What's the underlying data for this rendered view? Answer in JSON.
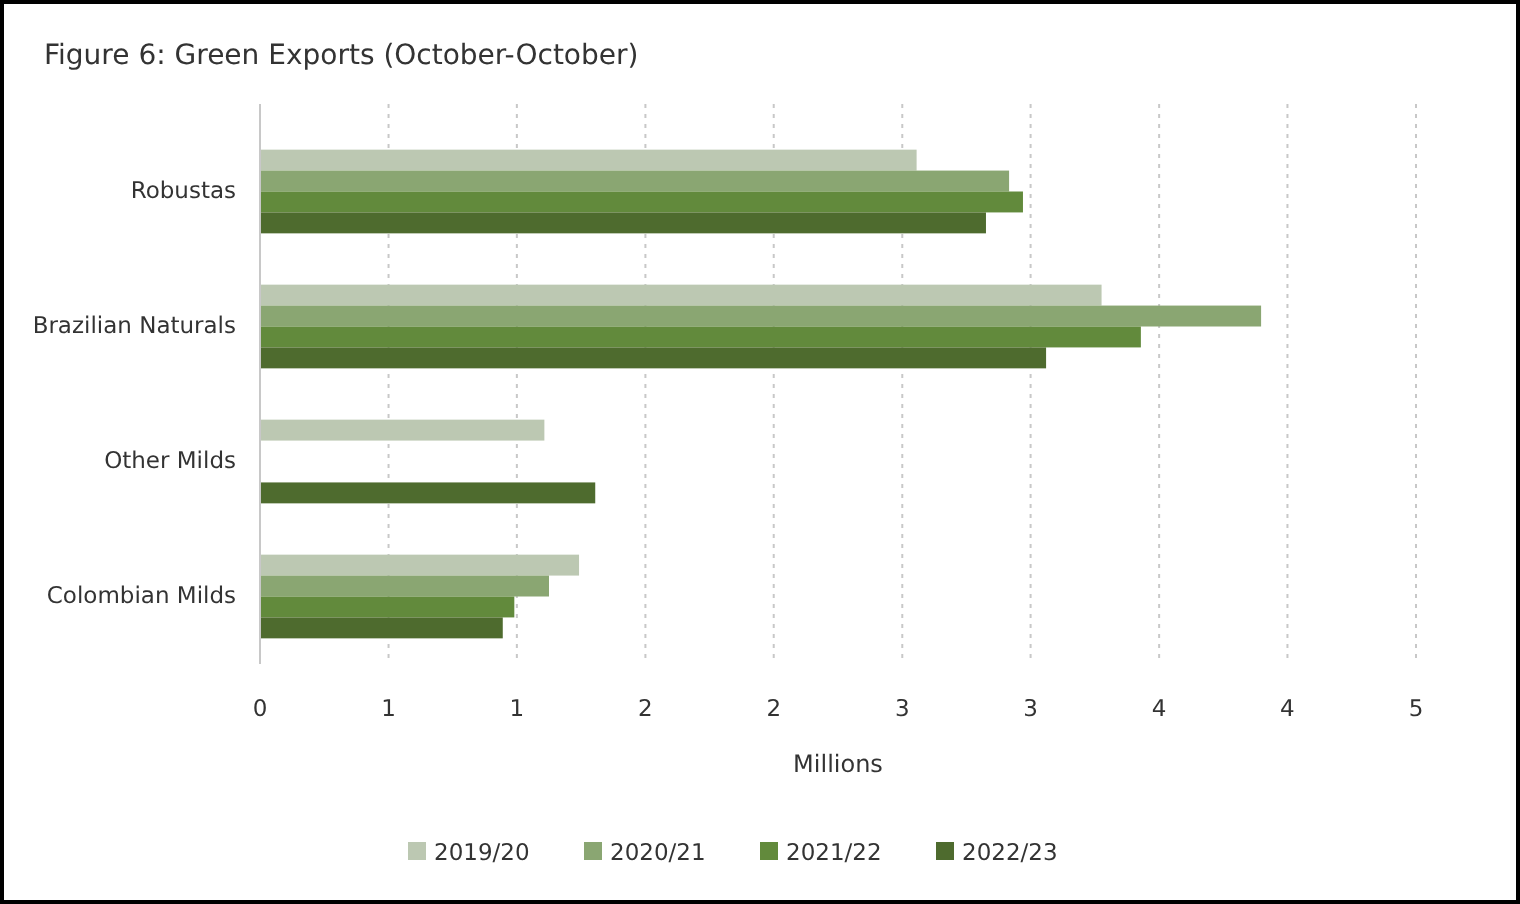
{
  "chart_data": {
    "type": "bar",
    "orientation": "horizontal",
    "title": "Figure 6: Green Exports (October-October)",
    "xlabel": "Millions",
    "categories": [
      "Robustas",
      "Brazilian Naturals",
      "Other Milds",
      "Colombian Milds"
    ],
    "series": [
      {
        "name": "2019/20",
        "color": "#bcc8b2",
        "values": [
          2.84,
          3.64,
          1.23,
          1.38
        ]
      },
      {
        "name": "2020/21",
        "color": "#8aa672",
        "values": [
          3.24,
          4.33,
          null,
          1.25
        ]
      },
      {
        "name": "2021/22",
        "color": "#628a3c",
        "values": [
          3.3,
          3.81,
          null,
          1.1
        ]
      },
      {
        "name": "2022/23",
        "color": "#4e6b2e",
        "values": [
          3.14,
          3.4,
          1.45,
          1.05
        ]
      }
    ],
    "xlim": [
      0,
      5
    ],
    "xticks": [
      0,
      {
        "value": 0.556,
        "label": "1"
      },
      {
        "value": 1.111,
        "label": "1"
      },
      {
        "value": 1.667,
        "label": "2"
      },
      {
        "value": 2.222,
        "label": "2"
      },
      {
        "value": 2.778,
        "label": "3"
      },
      {
        "value": 3.333,
        "label": "3"
      },
      {
        "value": 3.889,
        "label": "4"
      },
      {
        "value": 4.444,
        "label": "4"
      },
      5
    ],
    "grid": "x",
    "legend": "bottom"
  }
}
